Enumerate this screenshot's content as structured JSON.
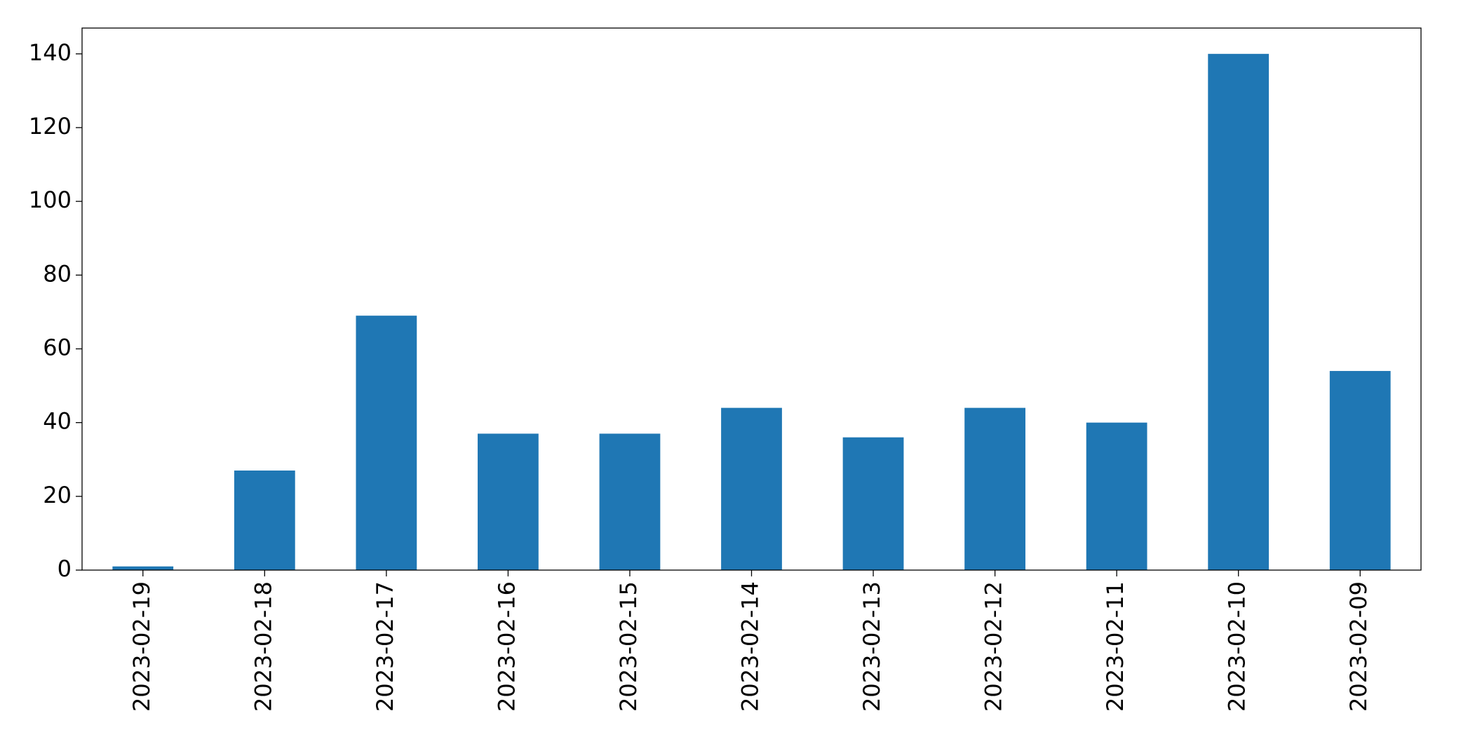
{
  "chart_data": {
    "type": "bar",
    "categories": [
      "2023-02-19",
      "2023-02-18",
      "2023-02-17",
      "2023-02-16",
      "2023-02-15",
      "2023-02-14",
      "2023-02-13",
      "2023-02-12",
      "2023-02-11",
      "2023-02-10",
      "2023-02-09"
    ],
    "values": [
      1,
      27,
      69,
      37,
      37,
      44,
      36,
      44,
      40,
      140,
      54
    ],
    "color": "#1f77b4",
    "ylim": [
      0,
      147
    ],
    "yticks": [
      0,
      20,
      40,
      60,
      80,
      100,
      120,
      140
    ],
    "grid": false
  }
}
